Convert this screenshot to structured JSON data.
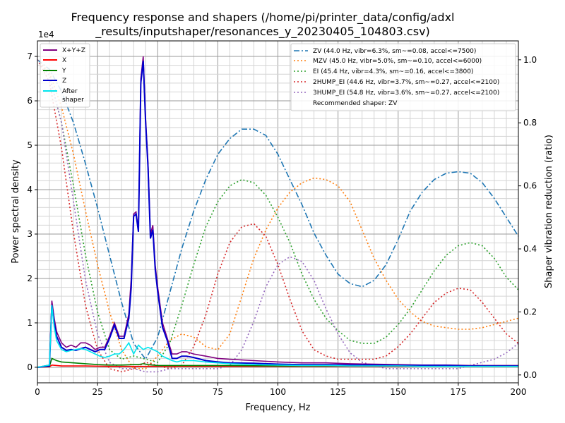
{
  "chart_data": {
    "type": "line",
    "title_line1": "Frequency response and shapers (/home/pi/printer_data/config/adxl",
    "title_line2": "_results/inputshaper/resonances_y_20230405_104803.csv)",
    "xlabel": "Frequency, Hz",
    "ylabel": "Power spectral density",
    "y2label": "Shaper vibration reduction (ratio)",
    "y_exponent_label": "1e4",
    "xlim": [
      0,
      200
    ],
    "ylim": [
      -0.35,
      7.35
    ],
    "y2lim": [
      -0.025,
      1.06
    ],
    "x_ticks": [
      0,
      25,
      50,
      75,
      100,
      125,
      150,
      175,
      200
    ],
    "x_tick_labels": [
      "0",
      "25",
      "50",
      "75",
      "100",
      "125",
      "150",
      "175",
      "200"
    ],
    "y_ticks": [
      0,
      1,
      2,
      3,
      4,
      5,
      6,
      7
    ],
    "y_tick_labels": [
      "0",
      "1",
      "2",
      "3",
      "4",
      "5",
      "6",
      "7"
    ],
    "y2_ticks": [
      0.0,
      0.2,
      0.4,
      0.6,
      0.8,
      1.0
    ],
    "y2_tick_labels": [
      "0.0",
      "0.2",
      "0.4",
      "0.6",
      "0.8",
      "1.0"
    ],
    "grid": true,
    "psd_series": [
      {
        "name": "X+Y+Z",
        "color": "#800080",
        "x": [
          0,
          5,
          6,
          7,
          8,
          10,
          12,
          14,
          16,
          18,
          20,
          22,
          24,
          26,
          28,
          30,
          32,
          34,
          36,
          38,
          39,
          40,
          41,
          42,
          43,
          44,
          45,
          46,
          47,
          48,
          49,
          50,
          52,
          54,
          56,
          58,
          60,
          62,
          65,
          70,
          75,
          80,
          90,
          100,
          110,
          120,
          130,
          140,
          150,
          160,
          170,
          180,
          190,
          200
        ],
        "y": [
          0,
          0.05,
          1.5,
          1.1,
          0.8,
          0.55,
          0.45,
          0.5,
          0.45,
          0.55,
          0.55,
          0.5,
          0.4,
          0.45,
          0.45,
          0.7,
          1.0,
          0.7,
          0.7,
          1.2,
          2.0,
          3.45,
          3.5,
          3.1,
          6.5,
          7.0,
          5.6,
          4.6,
          3.0,
          3.2,
          2.3,
          1.8,
          1.0,
          0.65,
          0.3,
          0.3,
          0.35,
          0.35,
          0.3,
          0.25,
          0.2,
          0.18,
          0.15,
          0.12,
          0.1,
          0.1,
          0.08,
          0.07,
          0.06,
          0.05,
          0.05,
          0.04,
          0.04,
          0.04
        ]
      },
      {
        "name": "X",
        "color": "#ff0000",
        "x": [
          0,
          5,
          6,
          8,
          10,
          20,
          30,
          40,
          50,
          60,
          80,
          100,
          125,
          150,
          175,
          200
        ],
        "y": [
          0,
          0.01,
          0.05,
          0.04,
          0.03,
          0.03,
          0.02,
          0.02,
          0.02,
          0.02,
          0.02,
          0.02,
          0.02,
          0.02,
          0.02,
          0.02
        ]
      },
      {
        "name": "Y",
        "color": "#008000",
        "x": [
          0,
          5,
          6,
          8,
          10,
          15,
          20,
          25,
          30,
          35,
          40,
          42,
          44,
          46,
          48,
          50,
          60,
          70,
          80,
          100,
          125,
          150,
          175,
          200
        ],
        "y": [
          0,
          0.02,
          0.2,
          0.15,
          0.12,
          0.1,
          0.08,
          0.06,
          0.05,
          0.05,
          0.06,
          0.06,
          0.08,
          0.06,
          0.05,
          0.04,
          0.04,
          0.04,
          0.04,
          0.03,
          0.03,
          0.03,
          0.03,
          0.02
        ]
      },
      {
        "name": "Z",
        "color": "#0000cc",
        "x": [
          0,
          5,
          6,
          7,
          8,
          10,
          12,
          14,
          16,
          18,
          20,
          22,
          24,
          26,
          28,
          30,
          32,
          34,
          36,
          38,
          39,
          40,
          41,
          42,
          43,
          44,
          45,
          46,
          47,
          48,
          49,
          50,
          52,
          54,
          56,
          58,
          60,
          62,
          65,
          70,
          75,
          80,
          90,
          100,
          110,
          120,
          130,
          140,
          150,
          160,
          170,
          180,
          190,
          200
        ],
        "y": [
          0,
          0.03,
          1.4,
          1.0,
          0.7,
          0.45,
          0.38,
          0.4,
          0.38,
          0.42,
          0.45,
          0.4,
          0.35,
          0.4,
          0.4,
          0.65,
          0.95,
          0.65,
          0.65,
          1.1,
          1.8,
          3.4,
          3.45,
          3.05,
          6.4,
          6.9,
          5.5,
          4.5,
          2.9,
          3.1,
          2.2,
          1.7,
          0.9,
          0.6,
          0.2,
          0.2,
          0.25,
          0.25,
          0.22,
          0.15,
          0.12,
          0.1,
          0.09,
          0.07,
          0.06,
          0.06,
          0.05,
          0.05,
          0.04,
          0.04,
          0.04,
          0.03,
          0.03,
          0.03
        ]
      },
      {
        "name": "After\nshaper",
        "color": "#00e5ee",
        "x": [
          0,
          5,
          6,
          7,
          8,
          10,
          12,
          14,
          16,
          18,
          20,
          22,
          24,
          26,
          28,
          30,
          32,
          34,
          36,
          38,
          40,
          42,
          44,
          46,
          48,
          50,
          52,
          54,
          56,
          58,
          60,
          65,
          70,
          75,
          80,
          90,
          100,
          110,
          120,
          130,
          140,
          150,
          160,
          170,
          180,
          190,
          200
        ],
        "y": [
          0,
          0.05,
          1.4,
          0.9,
          0.6,
          0.4,
          0.35,
          0.38,
          0.4,
          0.42,
          0.4,
          0.35,
          0.3,
          0.25,
          0.22,
          0.25,
          0.3,
          0.3,
          0.4,
          0.55,
          0.3,
          0.5,
          0.4,
          0.45,
          0.4,
          0.35,
          0.25,
          0.2,
          0.15,
          0.12,
          0.15,
          0.15,
          0.12,
          0.1,
          0.08,
          0.06,
          0.05,
          0.04,
          0.04,
          0.03,
          0.03,
          0.03,
          0.02,
          0.02,
          0.02,
          0.02,
          0.02
        ]
      }
    ],
    "shaper_series": [
      {
        "name": "ZV (44.0 Hz, vibr=6.3%, sm~=0.08, accel<=7500)",
        "color": "#1f77b4",
        "dash": "dashdot",
        "x": [
          0,
          5,
          10,
          15,
          20,
          25,
          30,
          35,
          40,
          45,
          50,
          55,
          60,
          65,
          70,
          75,
          80,
          85,
          90,
          95,
          100,
          105,
          110,
          115,
          120,
          125,
          130,
          135,
          140,
          145,
          150,
          155,
          160,
          165,
          170,
          175,
          180,
          185,
          190,
          195,
          200
        ],
        "y": [
          1.0,
          0.97,
          0.9,
          0.8,
          0.67,
          0.53,
          0.38,
          0.23,
          0.1,
          0.05,
          0.12,
          0.26,
          0.4,
          0.52,
          0.62,
          0.7,
          0.75,
          0.78,
          0.78,
          0.76,
          0.7,
          0.62,
          0.54,
          0.45,
          0.38,
          0.32,
          0.29,
          0.28,
          0.3,
          0.35,
          0.43,
          0.52,
          0.58,
          0.62,
          0.64,
          0.645,
          0.64,
          0.61,
          0.56,
          0.5,
          0.44
        ]
      },
      {
        "name": "MZV (45.0 Hz, vibr=5.0%, sm~=0.10, accel<=6000)",
        "color": "#ff7f0e",
        "dash": "dot",
        "x": [
          0,
          5,
          10,
          15,
          20,
          25,
          30,
          35,
          40,
          45,
          50,
          55,
          60,
          65,
          70,
          75,
          80,
          85,
          90,
          95,
          100,
          105,
          110,
          115,
          120,
          125,
          130,
          135,
          140,
          145,
          150,
          155,
          160,
          165,
          170,
          175,
          180,
          185,
          190,
          195,
          200
        ],
        "y": [
          1.0,
          0.96,
          0.85,
          0.7,
          0.52,
          0.35,
          0.2,
          0.08,
          0.02,
          0.02,
          0.06,
          0.11,
          0.13,
          0.12,
          0.09,
          0.08,
          0.13,
          0.25,
          0.37,
          0.46,
          0.53,
          0.58,
          0.61,
          0.625,
          0.62,
          0.6,
          0.55,
          0.46,
          0.37,
          0.3,
          0.24,
          0.2,
          0.17,
          0.155,
          0.15,
          0.145,
          0.145,
          0.15,
          0.16,
          0.17,
          0.18
        ]
      },
      {
        "name": "EI (45.4 Hz, vibr=4.3%, sm~=0.16, accel<=3800)",
        "color": "#2ca02c",
        "dash": "dot",
        "x": [
          0,
          5,
          10,
          15,
          20,
          25,
          30,
          35,
          40,
          45,
          50,
          55,
          60,
          65,
          70,
          75,
          80,
          85,
          90,
          95,
          100,
          105,
          110,
          115,
          120,
          125,
          130,
          135,
          140,
          145,
          150,
          155,
          160,
          165,
          170,
          175,
          180,
          185,
          190,
          195,
          200
        ],
        "y": [
          1.0,
          0.95,
          0.8,
          0.6,
          0.38,
          0.2,
          0.08,
          0.05,
          0.06,
          0.05,
          0.04,
          0.1,
          0.22,
          0.35,
          0.47,
          0.55,
          0.6,
          0.62,
          0.61,
          0.57,
          0.5,
          0.42,
          0.32,
          0.24,
          0.18,
          0.14,
          0.11,
          0.1,
          0.1,
          0.12,
          0.16,
          0.21,
          0.27,
          0.33,
          0.38,
          0.41,
          0.42,
          0.41,
          0.37,
          0.31,
          0.27
        ]
      },
      {
        "name": "2HUMP_EI (44.6 Hz, vibr=3.7%, sm~=0.27, accel<=2100)",
        "color": "#d62728",
        "dash": "dot",
        "x": [
          0,
          5,
          10,
          15,
          20,
          25,
          30,
          35,
          40,
          45,
          50,
          55,
          60,
          65,
          70,
          75,
          80,
          85,
          90,
          95,
          100,
          105,
          110,
          115,
          120,
          125,
          130,
          135,
          140,
          145,
          150,
          155,
          160,
          165,
          170,
          175,
          180,
          185,
          190,
          195,
          200
        ],
        "y": [
          1.0,
          0.93,
          0.72,
          0.45,
          0.22,
          0.08,
          0.02,
          0.01,
          0.02,
          0.04,
          0.03,
          0.02,
          0.03,
          0.09,
          0.19,
          0.32,
          0.42,
          0.47,
          0.48,
          0.44,
          0.35,
          0.24,
          0.14,
          0.08,
          0.06,
          0.05,
          0.05,
          0.05,
          0.05,
          0.06,
          0.09,
          0.13,
          0.18,
          0.23,
          0.26,
          0.275,
          0.27,
          0.23,
          0.18,
          0.13,
          0.1
        ]
      },
      {
        "name": "3HUMP_EI (54.8 Hz, vibr=3.6%, sm~=0.27, accel<=2100)",
        "color": "#9467bd",
        "dash": "dot",
        "x": [
          0,
          5,
          10,
          15,
          20,
          25,
          30,
          35,
          40,
          45,
          50,
          55,
          60,
          65,
          70,
          75,
          80,
          85,
          90,
          95,
          100,
          105,
          110,
          115,
          120,
          125,
          130,
          135,
          140,
          145,
          150,
          155,
          160,
          165,
          170,
          175,
          180,
          185,
          190,
          195,
          200
        ],
        "y": [
          1.0,
          0.95,
          0.8,
          0.55,
          0.3,
          0.13,
          0.04,
          0.02,
          0.02,
          0.01,
          0.01,
          0.02,
          0.02,
          0.02,
          0.02,
          0.02,
          0.03,
          0.08,
          0.17,
          0.28,
          0.35,
          0.375,
          0.36,
          0.3,
          0.21,
          0.13,
          0.07,
          0.04,
          0.03,
          0.02,
          0.02,
          0.02,
          0.02,
          0.02,
          0.02,
          0.02,
          0.03,
          0.04,
          0.05,
          0.07,
          0.1
        ]
      }
    ],
    "recommended_label": "Recommended shaper: ZV",
    "legend_left": "top-left",
    "legend_right": "top-right"
  }
}
